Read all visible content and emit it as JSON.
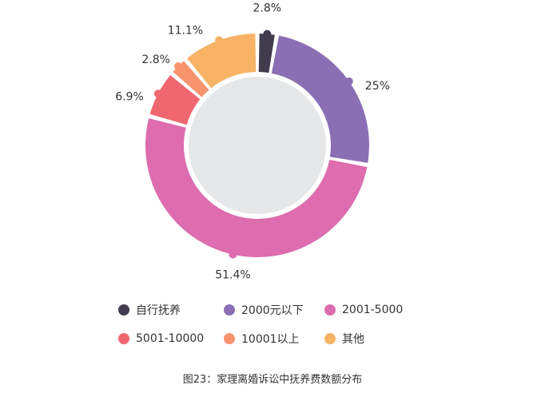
{
  "chart_data": {
    "type": "pie",
    "categories": [
      "自行抚养",
      "2000元以下",
      "2001-5000",
      "5001-10000",
      "10001以上",
      "其他"
    ],
    "values": [
      2.8,
      25,
      51.4,
      6.9,
      2.8,
      11.1
    ],
    "labels": [
      "2.8%",
      "25%",
      "51.4%",
      "6.9%",
      "2.8%",
      "11.1%"
    ],
    "colors": [
      "#413b4e",
      "#8a6fb5",
      "#dd6daf",
      "#f0676f",
      "#f7936d",
      "#f8b366"
    ],
    "inner_fill": "#e6e7e9",
    "legend_position": "bottom"
  },
  "caption": "图23：家理离婚诉讼中抚养费数额分布"
}
